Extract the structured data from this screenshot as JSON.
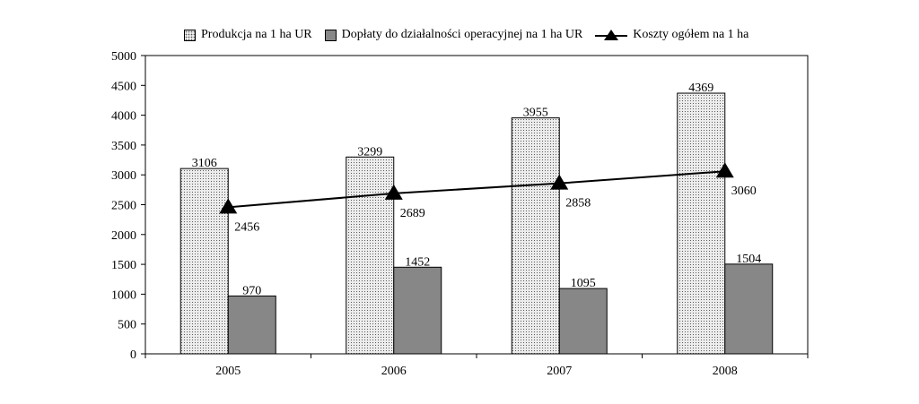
{
  "chart_data": {
    "type": "bar",
    "categories": [
      "2005",
      "2006",
      "2007",
      "2008"
    ],
    "series": [
      {
        "name": "Produkcja na 1 ha UR",
        "kind": "bar",
        "pattern": "dotted",
        "color": "#ececec",
        "values": [
          3106,
          3299,
          3955,
          4369
        ]
      },
      {
        "name": "Dopłaty do działalności operacyjnej na 1 ha UR",
        "kind": "bar",
        "color": "#878787",
        "values": [
          970,
          1452,
          1095,
          1504
        ]
      },
      {
        "name": "Koszty ogółem na 1 ha",
        "kind": "line",
        "marker": "triangle",
        "color": "#000000",
        "values": [
          2456,
          2689,
          2858,
          3060
        ]
      }
    ],
    "ylim": [
      0,
      5000
    ],
    "yticks": [
      0,
      500,
      1000,
      1500,
      2000,
      2500,
      3000,
      3500,
      4000,
      4500,
      5000
    ],
    "grid": false,
    "legend_position": "top",
    "title": "",
    "xlabel": "",
    "ylabel": ""
  }
}
